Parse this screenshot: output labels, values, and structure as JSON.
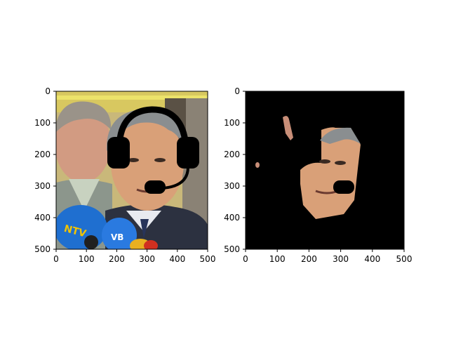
{
  "chart_data": [
    {
      "type": "image",
      "content": "Photograph of a man speaking at a press event with several microphones in front of him; a black headset drawing (headband, two ear cups and a boom microphone) is overlaid on his head.",
      "title": "",
      "xlabel": "",
      "ylabel": "",
      "xlim": [
        0,
        500
      ],
      "ylim": [
        500,
        0
      ],
      "xticks": [
        "0",
        "100",
        "200",
        "300",
        "400",
        "500"
      ],
      "yticks": [
        "0",
        "100",
        "200",
        "300",
        "400",
        "500"
      ],
      "grid": false,
      "microphone_text": [
        "NTV",
        "VB"
      ]
    },
    {
      "type": "image",
      "content": "Segmentation mask result: only the man's face region is kept, everything else black, with the headset region cut out.",
      "title": "",
      "xlabel": "",
      "ylabel": "",
      "xlim": [
        0,
        500
      ],
      "ylim": [
        500,
        0
      ],
      "xticks": [
        "0",
        "100",
        "200",
        "300",
        "400",
        "500"
      ],
      "yticks": [
        "0",
        "100",
        "200",
        "300",
        "400",
        "500"
      ],
      "grid": false,
      "background": "#000000"
    }
  ],
  "colors": {
    "mask_background": "#000000",
    "overlay": "#000000",
    "skin": "#d9a078",
    "hair": "#8a8e90",
    "suit": "#2c3140",
    "mic": "#1f6fd0"
  }
}
